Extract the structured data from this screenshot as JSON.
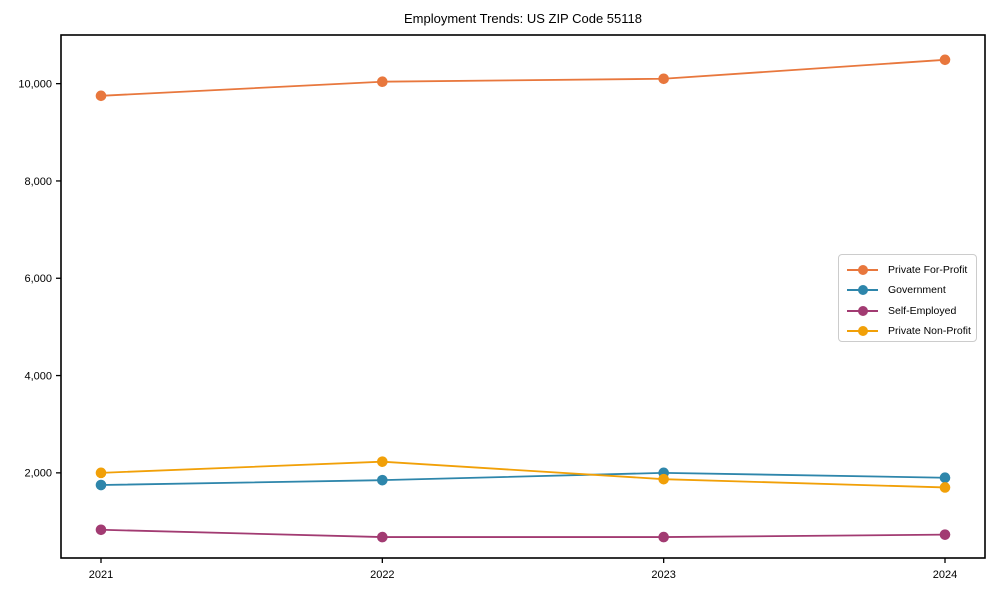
{
  "chart_data": {
    "type": "line",
    "title": "Employment Trends: US ZIP Code 55118",
    "x": [
      2021,
      2022,
      2023,
      2024
    ],
    "x_labels": [
      "2021",
      "2022",
      "2023",
      "2024"
    ],
    "series": [
      {
        "name": "Private For-Profit",
        "color": "#e8773d",
        "values": [
          9750,
          10040,
          10100,
          10490
        ]
      },
      {
        "name": "Government",
        "color": "#2e86ab",
        "values": [
          1750,
          1850,
          2000,
          1900
        ]
      },
      {
        "name": "Self-Employed",
        "color": "#a23b72",
        "values": [
          830,
          680,
          680,
          730
        ]
      },
      {
        "name": "Private Non-Profit",
        "color": "#f1a008",
        "values": [
          2000,
          2230,
          1870,
          1700
        ]
      }
    ],
    "yticks": [
      {
        "value": 2000,
        "label": "2,000"
      },
      {
        "value": 4000,
        "label": "4,000"
      },
      {
        "value": 6000,
        "label": "6,000"
      },
      {
        "value": 8000,
        "label": "8,000"
      },
      {
        "value": 10000,
        "label": "10,000"
      }
    ],
    "ylim": [
      250,
      11000
    ],
    "xlabel": "",
    "ylabel": "",
    "grid": false,
    "legend_position": "right-middle",
    "axis_color": "#000000",
    "background": "#ffffff"
  }
}
